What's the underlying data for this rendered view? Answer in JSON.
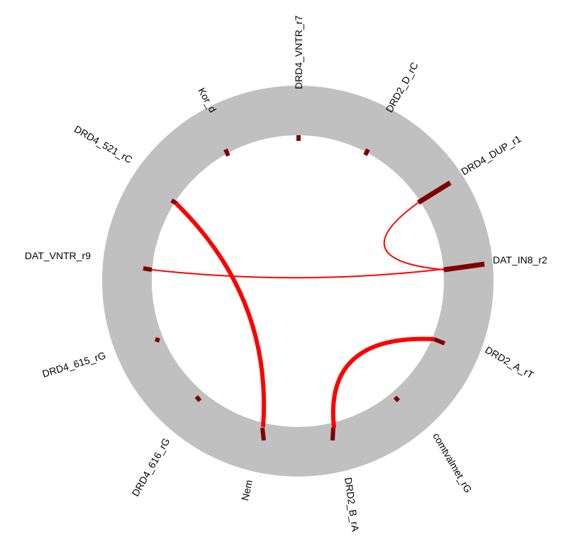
{
  "nodes": [
    {
      "id": "DRD4_VNTR_r7",
      "label": "DRD4_VNTR_r7",
      "angle": 0,
      "tick": "small"
    },
    {
      "id": "DRD2_D_rC",
      "label": "DRD2_D_rC",
      "angle": 30,
      "tick": "small"
    },
    {
      "id": "DRD4_DUP_r1",
      "label": "DRD4_DUP_r1",
      "angle": 60,
      "tick": "large"
    },
    {
      "id": "DAT_IN8_r2",
      "label": "DAT_IN8_r2",
      "angle": 90,
      "tick": "large"
    },
    {
      "id": "DRD2_A_rT",
      "label": "DRD2_A_rT",
      "angle": 120,
      "tick": "medium"
    },
    {
      "id": "comtvalmet_rG",
      "label": "comtvalmet_rG",
      "angle": 150,
      "tick": "small"
    },
    {
      "id": "DRD2_B_rA",
      "label": "DRD2_B_rA",
      "angle": 180,
      "tick": "medium"
    },
    {
      "id": "Nem",
      "label": "Nem",
      "angle": 210,
      "tick": "medium"
    },
    {
      "id": "DRD4_616_rG",
      "label": "DRD4_616_rG",
      "angle": 240,
      "tick": "small"
    },
    {
      "id": "DRD4_615_rG",
      "label": "DRD4_615_rG",
      "angle": 270,
      "tick": "small"
    },
    {
      "id": "DAT_VNTR_r9",
      "label": "DAT_VNTR_r9",
      "angle": 300,
      "tick": "medium"
    },
    {
      "id": "DRD4_521_rC",
      "label": "DRD4_521_rC",
      "angle": 330,
      "tick": "medium"
    },
    {
      "id": "Kor_d",
      "label": "Kor_d",
      "angle": 330,
      "tick": "small"
    }
  ],
  "links": [
    {
      "source": "DRD4_521_rC",
      "target": "Nem",
      "weight": "thick"
    },
    {
      "source": "DRD2_A_rT",
      "target": "DRD2_B_rA",
      "weight": "thick"
    },
    {
      "source": "DRD4_DUP_r1",
      "target": "DAT_IN8_r2",
      "weight": "thin"
    },
    {
      "source": "DAT_VNTR_r9",
      "target": "DAT_IN8_r2",
      "weight": "thin"
    }
  ],
  "colors": {
    "ring": "#c0c0c0",
    "tick": "#800000",
    "link": "#ff0000",
    "background": "#ffffff",
    "text": "#000000"
  }
}
